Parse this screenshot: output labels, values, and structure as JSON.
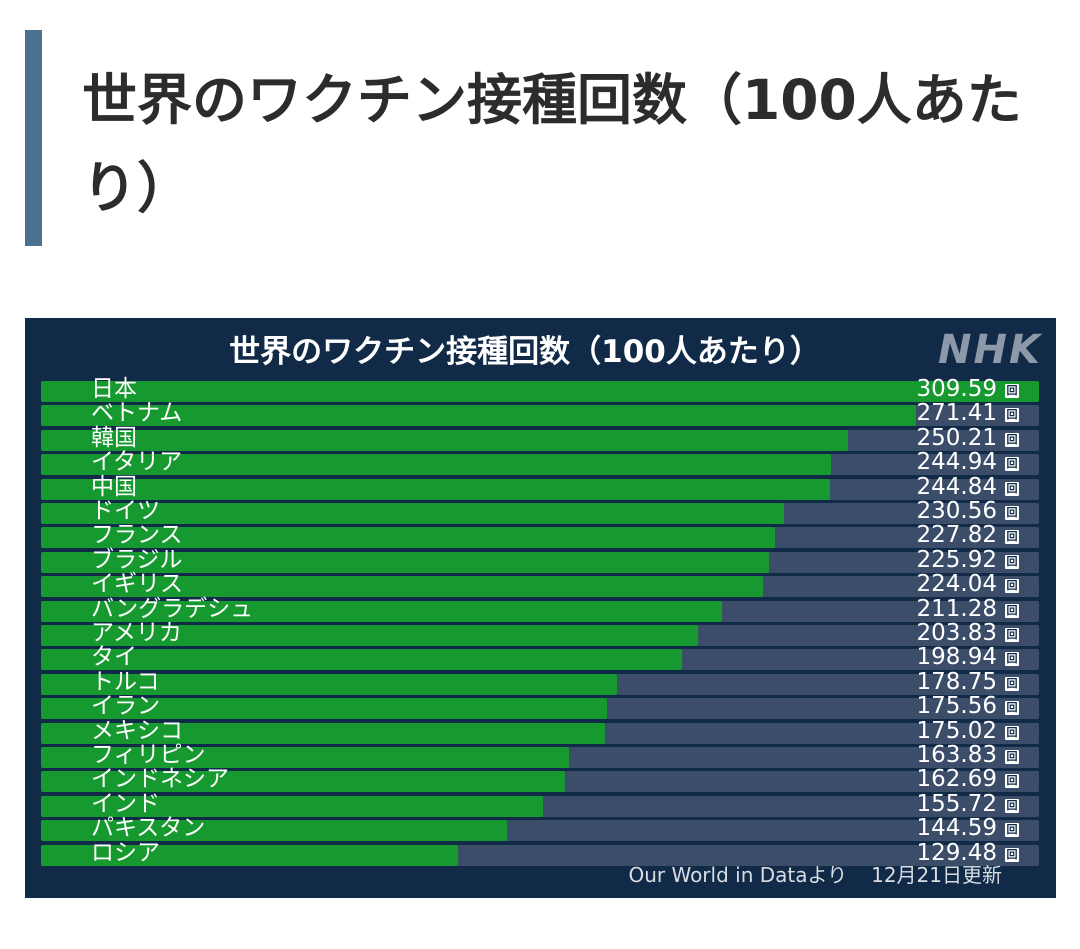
{
  "heading": "世界のワクチン接種回数（100人あたり）",
  "chart_data": {
    "type": "bar",
    "orientation": "horizontal",
    "title": "世界のワクチン接種回数（100人あたり）",
    "categories": [
      "日本",
      "ベトナム",
      "韓国",
      "イタリア",
      "中国",
      "ドイツ",
      "フランス",
      "ブラジル",
      "イギリス",
      "バングラデシュ",
      "アメリカ",
      "タイ",
      "トルコ",
      "イラン",
      "メキシコ",
      "フィリピン",
      "インドネシア",
      "インド",
      "パキスタン",
      "ロシア"
    ],
    "values": [
      309.59,
      271.41,
      250.21,
      244.94,
      244.84,
      230.56,
      227.82,
      225.92,
      224.04,
      211.28,
      203.83,
      198.94,
      178.75,
      175.56,
      175.02,
      163.83,
      162.69,
      155.72,
      144.59,
      129.48
    ],
    "value_labels": [
      "309.59",
      "271.41",
      "250.21",
      "244.94",
      "244.84",
      "230.56",
      "227.82",
      "225.92",
      "224.04",
      "211.28",
      "203.83",
      "198.94",
      "178.75",
      "175.56",
      "175.02",
      "163.83",
      "162.69",
      "155.72",
      "144.59",
      "129.48"
    ],
    "unit": "回",
    "xlim": [
      0,
      309.59
    ],
    "xlabel": "",
    "ylabel": "",
    "grid": false,
    "legend": false,
    "colors": {
      "bar": "#16992f",
      "track": "#3b4d69",
      "background": "#102a47"
    }
  },
  "logo": "NHK",
  "source": "Our World in Dataより",
  "updated": "12月21日更新"
}
